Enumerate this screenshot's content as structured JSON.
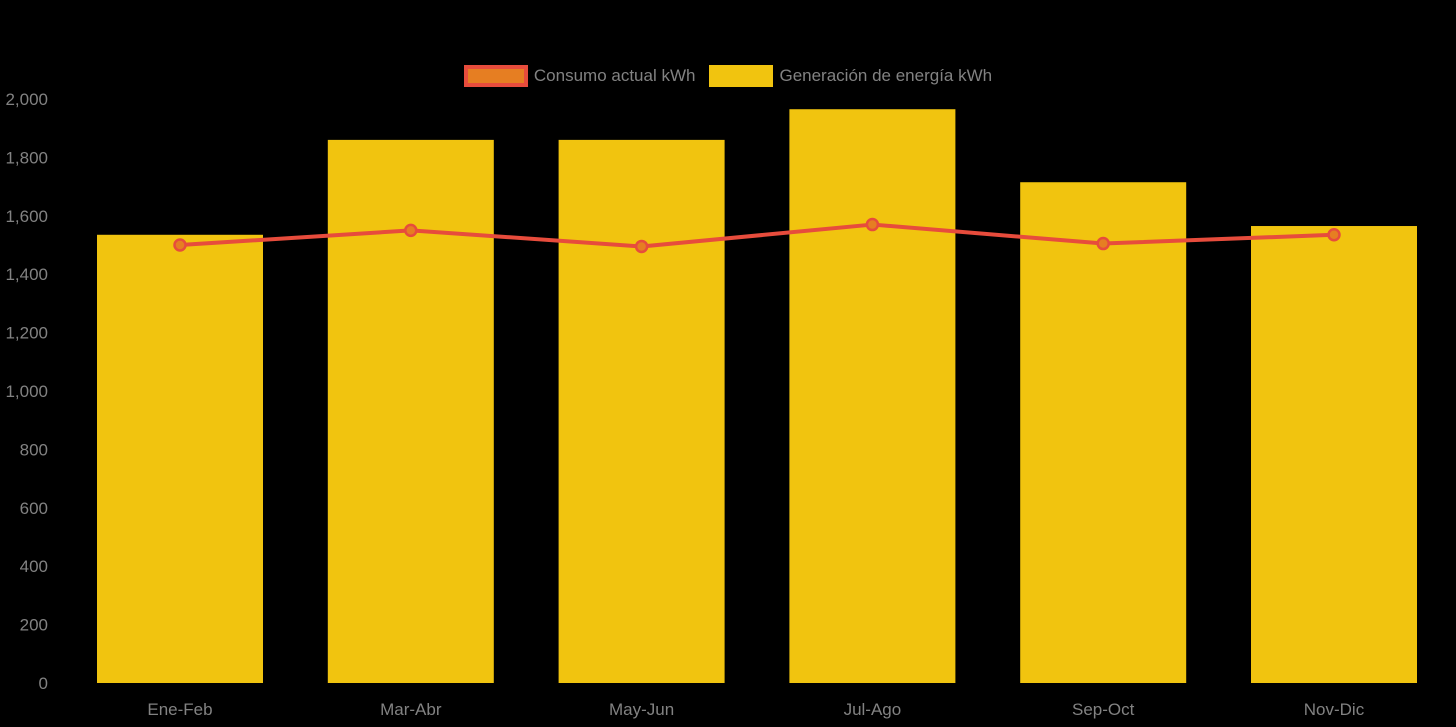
{
  "page": {
    "background": "#000000",
    "text_color": "#828282"
  },
  "legend": {
    "position": "top-center",
    "items": [
      {
        "label": "Consumo actual kWh",
        "swatch_fill": "#e67e22",
        "swatch_border": "#e74c3c"
      },
      {
        "label": "Generación de energía kWh",
        "swatch_fill": "#f1c40f",
        "swatch_border": "#f1c40f"
      }
    ]
  },
  "chart_data": {
    "type": "bar",
    "subtype": "bar-line-combo",
    "title": "",
    "xlabel": "",
    "ylabel": "",
    "categories": [
      "Ene-Feb",
      "Mar-Abr",
      "May-Jun",
      "Jul-Ago",
      "Sep-Oct",
      "Nov-Dic"
    ],
    "series": [
      {
        "name": "Generación de energía kWh",
        "type": "bar",
        "color": "#f1c40f",
        "values": [
          1535,
          1860,
          1860,
          1965,
          1715,
          1565
        ]
      },
      {
        "name": "Consumo actual kWh",
        "type": "line",
        "color": "#e74c3c",
        "point_fill": "#e67e22",
        "point_border": "#e74c3c",
        "values": [
          1500,
          1550,
          1495,
          1570,
          1505,
          1535
        ]
      }
    ],
    "ylim": [
      0,
      2000
    ],
    "ytick_step": 200,
    "ytick_labels": [
      "0",
      "200",
      "400",
      "600",
      "800",
      "1,000",
      "1,200",
      "1,400",
      "1,600",
      "1,800",
      "2,000"
    ],
    "grid": false,
    "legend_position": "top",
    "background": "#000000",
    "axis_label_color": "#828282"
  }
}
